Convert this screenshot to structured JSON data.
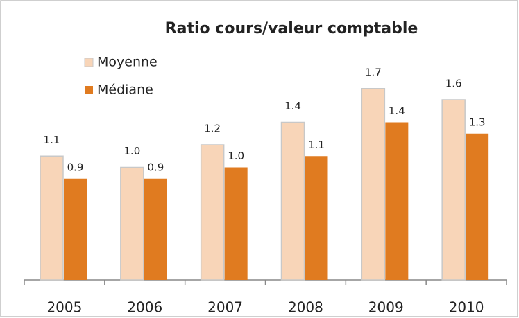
{
  "chart_data": {
    "type": "bar",
    "title": "Ratio cours/valeur comptable",
    "categories": [
      "2005",
      "2006",
      "2007",
      "2008",
      "2009",
      "2010"
    ],
    "series": [
      {
        "name": "Moyenne",
        "color": "#f8d5b8",
        "values": [
          1.1,
          1.0,
          1.2,
          1.4,
          1.7,
          1.6
        ],
        "value_labels": [
          "1.1",
          "1.0",
          "1.2",
          "1.4",
          "1.7",
          "1.6"
        ]
      },
      {
        "name": "Médiane",
        "color": "#e07b20",
        "values": [
          0.9,
          0.9,
          1.0,
          1.1,
          1.4,
          1.3
        ],
        "value_labels": [
          "0.9",
          "0.9",
          "1.0",
          "1.1",
          "1.4",
          "1.3"
        ]
      }
    ],
    "ylim": [
      0,
      2
    ],
    "legend": "upper left"
  }
}
